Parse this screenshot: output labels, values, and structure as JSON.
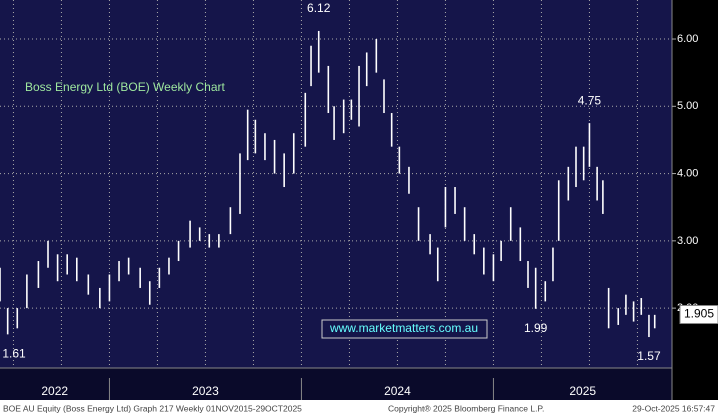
{
  "chart_data": {
    "type": "range-bar",
    "title": "Boss Energy Ltd (BOE) Weekly Chart",
    "watermark": "www.marketmatters.com.au",
    "footer": [
      "BOE AU Equity (Boss Energy Ltd) Graph 217 Weekly 01NOV2015-29OCT2025",
      "Copyright® 2025 Bloomberg Finance L.P.",
      "29-Oct-2025 16:57:47"
    ],
    "color": "#ffffff",
    "x": [
      2022.43,
      2022.47,
      2022.52,
      2022.57,
      2022.63,
      2022.68,
      2022.73,
      2022.78,
      2022.83,
      2022.89,
      2022.95,
      2023.0,
      2023.05,
      2023.1,
      2023.16,
      2023.21,
      2023.26,
      2023.31,
      2023.36,
      2023.42,
      2023.47,
      2023.52,
      2023.57,
      2023.63,
      2023.68,
      2023.72,
      2023.76,
      2023.81,
      2023.86,
      2023.91,
      2023.96,
      2024.02,
      2024.05,
      2024.09,
      2024.14,
      2024.17,
      2024.22,
      2024.26,
      2024.3,
      2024.34,
      2024.39,
      2024.43,
      2024.47,
      2024.51,
      2024.56,
      2024.61,
      2024.67,
      2024.71,
      2024.75,
      2024.8,
      2024.85,
      2024.9,
      2024.95,
      2025.0,
      2025.04,
      2025.09,
      2025.14,
      2025.18,
      2025.22,
      2025.27,
      2025.31,
      2025.34,
      2025.39,
      2025.43,
      2025.47,
      2025.5,
      2025.54,
      2025.57,
      2025.6,
      2025.65,
      2025.69,
      2025.73,
      2025.77,
      2025.81,
      2025.84
    ],
    "low": [
      2.1,
      1.61,
      1.7,
      2.0,
      2.3,
      2.6,
      2.4,
      2.5,
      2.4,
      2.2,
      2.0,
      2.1,
      2.4,
      2.5,
      2.3,
      2.05,
      2.3,
      2.5,
      2.7,
      2.9,
      3.0,
      2.9,
      2.9,
      3.1,
      3.4,
      4.2,
      4.3,
      4.2,
      4.0,
      3.8,
      4.0,
      4.4,
      5.3,
      5.5,
      4.9,
      4.5,
      4.6,
      4.8,
      4.7,
      5.3,
      5.5,
      4.9,
      4.4,
      4.0,
      3.7,
      3.0,
      2.8,
      2.4,
      3.2,
      3.4,
      3.0,
      2.8,
      2.5,
      2.4,
      2.7,
      3.0,
      2.7,
      2.3,
      1.99,
      2.1,
      2.4,
      3.0,
      3.6,
      3.8,
      3.9,
      4.1,
      3.6,
      3.4,
      1.7,
      1.75,
      1.9,
      1.8,
      1.9,
      1.57,
      1.7
    ],
    "high": [
      2.6,
      2.0,
      2.0,
      2.5,
      2.7,
      3.0,
      2.8,
      2.8,
      2.75,
      2.5,
      2.3,
      2.5,
      2.7,
      2.75,
      2.6,
      2.4,
      2.6,
      2.75,
      3.0,
      3.3,
      3.2,
      3.1,
      3.1,
      3.5,
      4.3,
      4.95,
      4.8,
      4.6,
      4.5,
      4.3,
      4.6,
      5.2,
      5.9,
      6.12,
      5.6,
      5.0,
      5.1,
      5.1,
      5.6,
      5.8,
      6.0,
      5.4,
      4.9,
      4.4,
      4.1,
      3.5,
      3.1,
      2.9,
      3.8,
      3.8,
      3.5,
      3.1,
      2.9,
      2.8,
      3.0,
      3.5,
      3.2,
      2.7,
      2.6,
      2.4,
      2.9,
      3.9,
      4.1,
      4.4,
      4.4,
      4.75,
      4.1,
      3.9,
      2.3,
      2.0,
      2.2,
      2.1,
      2.15,
      1.9,
      1.9
    ],
    "annotations": [
      {
        "value": 6.12,
        "label": "6.12"
      },
      {
        "value": 4.75,
        "label": "4.75"
      },
      {
        "value": 1.99,
        "label": "1.99"
      },
      {
        "value": 1.61,
        "label": "1.61"
      },
      {
        "value": 1.57,
        "label": "1.57"
      }
    ],
    "last_price": {
      "value": 1.905,
      "label": "1.905"
    },
    "xlim": [
      2022.43,
      2025.93
    ],
    "xticks": [
      {
        "value": 2022.715,
        "label": "2022"
      },
      {
        "value": 2023.5,
        "label": "2023"
      },
      {
        "value": 2024.5,
        "label": "2024"
      },
      {
        "value": 2025.465,
        "label": "2025"
      }
    ],
    "year_dividers": [
      2023,
      2024,
      2025
    ],
    "xgrid": [
      2022.5,
      2022.75,
      2023.0,
      2023.25,
      2023.5,
      2023.75,
      2024.0,
      2024.25,
      2024.5,
      2024.75,
      2025.0,
      2025.25,
      2025.5,
      2025.75
    ],
    "ylim": [
      1.11,
      6.58
    ],
    "yticks": [
      {
        "value": 2,
        "label": "2.00"
      },
      {
        "value": 3,
        "label": "3.00"
      },
      {
        "value": 4,
        "label": "4.00"
      },
      {
        "value": 5,
        "label": "5.00"
      },
      {
        "value": 6,
        "label": "6.00"
      }
    ],
    "grid": true
  }
}
